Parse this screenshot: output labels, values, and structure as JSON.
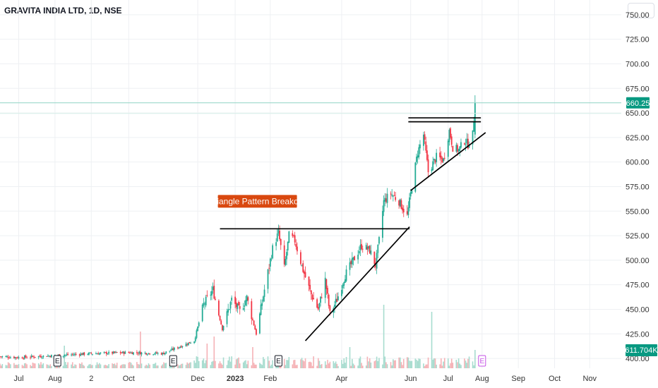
{
  "header": {
    "title": "GRAVITA INDIA LTD, 1D, NSE"
  },
  "colors": {
    "up": "#22ab94",
    "down": "#f23645",
    "up_volume": "#a7dccf",
    "down_volume": "#f5b2b6",
    "price_tag": "#089981",
    "annotation": "#d9480f",
    "earnings_future": "#c552e6",
    "grid": "#eef0f3"
  },
  "chart_data": {
    "type": "candlestick",
    "title": "GRAVITA INDIA LTD, 1D, NSE",
    "y_axis": {
      "min": 390,
      "max": 765,
      "ticks": [
        "750.00",
        "725.00",
        "700.00",
        "675.00",
        "650.00",
        "625.00",
        "600.00",
        "575.00",
        "550.00",
        "525.00",
        "500.00",
        "475.00",
        "450.00",
        "425.00",
        "400.00"
      ]
    },
    "x_axis": {
      "start": "2022-06-15",
      "end": "2023-11-28",
      "ticks": [
        {
          "label": "Jul",
          "date": "2022-07-01"
        },
        {
          "label": "Aug",
          "date": "2022-08-01"
        },
        {
          "label": "2",
          "date": "2022-09-01"
        },
        {
          "label": "Oct",
          "date": "2022-10-03"
        },
        {
          "label": "Dec",
          "date": "2022-12-01"
        },
        {
          "label": "2023",
          "date": "2023-01-02",
          "bold": true
        },
        {
          "label": "Feb",
          "date": "2023-02-01"
        },
        {
          "label": "Apr",
          "date": "2023-04-03"
        },
        {
          "label": "Jun",
          "date": "2023-06-01"
        },
        {
          "label": "Jul",
          "date": "2023-07-03"
        },
        {
          "label": "Aug",
          "date": "2023-08-01"
        },
        {
          "label": "Sep",
          "date": "2023-09-01"
        },
        {
          "label": "Oct",
          "date": "2023-10-02"
        },
        {
          "label": "Nov",
          "date": "2023-11-01"
        }
      ]
    },
    "price_keypoints": [
      {
        "date": "2022-06-15",
        "close": 402
      },
      {
        "date": "2022-07-01",
        "close": 401
      },
      {
        "date": "2022-08-01",
        "close": 403
      },
      {
        "date": "2022-09-01",
        "close": 405
      },
      {
        "date": "2022-10-03",
        "close": 406
      },
      {
        "date": "2022-11-01",
        "close": 405
      },
      {
        "date": "2022-11-28",
        "close": 418
      },
      {
        "date": "2022-12-06",
        "close": 455
      },
      {
        "date": "2022-12-14",
        "close": 470
      },
      {
        "date": "2022-12-22",
        "close": 430
      },
      {
        "date": "2022-12-30",
        "close": 460
      },
      {
        "date": "2023-01-06",
        "close": 448
      },
      {
        "date": "2023-01-12",
        "close": 462
      },
      {
        "date": "2023-01-20",
        "close": 425
      },
      {
        "date": "2023-01-27",
        "close": 470
      },
      {
        "date": "2023-02-03",
        "close": 512
      },
      {
        "date": "2023-02-08",
        "close": 528
      },
      {
        "date": "2023-02-13",
        "close": 492
      },
      {
        "date": "2023-02-17",
        "close": 525
      },
      {
        "date": "2023-02-22",
        "close": 520
      },
      {
        "date": "2023-03-01",
        "close": 490
      },
      {
        "date": "2023-03-08",
        "close": 465
      },
      {
        "date": "2023-03-14",
        "close": 450
      },
      {
        "date": "2023-03-20",
        "close": 480
      },
      {
        "date": "2023-03-24",
        "close": 445
      },
      {
        "date": "2023-03-30",
        "close": 460
      },
      {
        "date": "2023-04-06",
        "close": 485
      },
      {
        "date": "2023-04-13",
        "close": 500
      },
      {
        "date": "2023-04-20",
        "close": 515
      },
      {
        "date": "2023-04-27",
        "close": 510
      },
      {
        "date": "2023-05-02",
        "close": 495
      },
      {
        "date": "2023-05-05",
        "close": 520
      },
      {
        "date": "2023-05-09",
        "close": 560
      },
      {
        "date": "2023-05-15",
        "close": 568
      },
      {
        "date": "2023-05-22",
        "close": 560
      },
      {
        "date": "2023-05-29",
        "close": 545
      },
      {
        "date": "2023-06-02",
        "close": 575
      },
      {
        "date": "2023-06-07",
        "close": 610
      },
      {
        "date": "2023-06-12",
        "close": 628
      },
      {
        "date": "2023-06-16",
        "close": 590
      },
      {
        "date": "2023-06-23",
        "close": 605
      },
      {
        "date": "2023-06-29",
        "close": 602
      },
      {
        "date": "2023-07-04",
        "close": 632
      },
      {
        "date": "2023-07-07",
        "close": 615
      },
      {
        "date": "2023-07-12",
        "close": 612
      },
      {
        "date": "2023-07-17",
        "close": 622
      },
      {
        "date": "2023-07-20",
        "close": 618
      },
      {
        "date": "2023-07-24",
        "close": 628
      },
      {
        "date": "2023-07-26",
        "close": 660
      }
    ],
    "last_price": {
      "label": "660.25",
      "value": 660.25
    },
    "volume_label": "611.704K",
    "volume_spikes": [
      {
        "date": "2022-08-09",
        "height": 32
      },
      {
        "date": "2022-10-13",
        "height": 52
      },
      {
        "date": "2022-12-09",
        "height": 35
      },
      {
        "date": "2022-12-15",
        "height": 45
      },
      {
        "date": "2023-01-17",
        "height": 30
      },
      {
        "date": "2023-04-10",
        "height": 30
      },
      {
        "date": "2023-05-09",
        "height": 90
      },
      {
        "date": "2023-06-19",
        "height": 80
      },
      {
        "date": "2023-07-26",
        "height": 26
      }
    ],
    "earnings": [
      {
        "label": "E",
        "date": "2022-08-03",
        "future": false
      },
      {
        "label": "E",
        "date": "2022-11-10",
        "future": false
      },
      {
        "label": "E",
        "date": "2023-02-08",
        "future": false
      },
      {
        "label": "E",
        "date": "2023-08-01",
        "future": true
      }
    ],
    "drawings": [
      {
        "name": "triangle-resistance-line",
        "from": {
          "date": "2022-12-20",
          "price": 532
        },
        "to": {
          "date": "2023-05-31",
          "price": 532
        }
      },
      {
        "name": "triangle-support-line",
        "from": {
          "date": "2023-03-03",
          "price": 418
        },
        "to": {
          "date": "2023-05-31",
          "price": 534
        }
      },
      {
        "name": "breakout-resistance-line-1",
        "from": {
          "date": "2023-05-30",
          "price": 645
        },
        "to": {
          "date": "2023-07-31",
          "price": 645
        }
      },
      {
        "name": "breakout-resistance-line-2",
        "from": {
          "date": "2023-05-30",
          "price": 641
        },
        "to": {
          "date": "2023-07-31",
          "price": 641
        }
      },
      {
        "name": "ascending-support-line",
        "from": {
          "date": "2023-06-01",
          "price": 571
        },
        "to": {
          "date": "2023-08-04",
          "price": 630
        }
      }
    ],
    "annotation": {
      "text": "Triangle Pattern Breakout",
      "date": "2023-01-21",
      "price": 560
    }
  }
}
